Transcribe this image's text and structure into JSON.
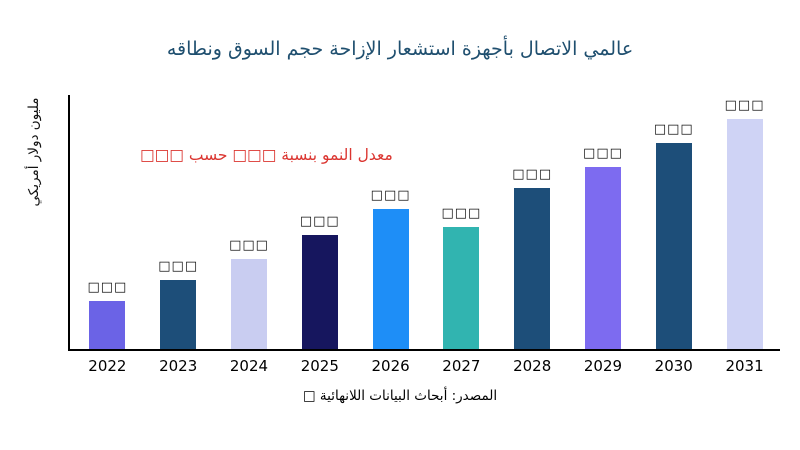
{
  "title": "عالمي الاتصال بأجهزة استشعار الإزاحة حجم السوق ونطاقه",
  "annotation": "معدل النمو بنسبة □□□ حسب □□□",
  "source": "المصدر: أبحاث البيانات اللانهائية □",
  "accent_colors": {
    "title": "#1f4f6f",
    "annotation": "#db3530",
    "axis": "#000000"
  },
  "chart_data": {
    "type": "bar",
    "title": "عالمي الاتصال بأجهزة استشعار الإزاحة حجم السوق ونطاقه",
    "xlabel": "",
    "ylabel": "مليون دولار أمريكي",
    "categories": [
      "2022",
      "2023",
      "2024",
      "2025",
      "2026",
      "2027",
      "2028",
      "2029",
      "2030",
      "2031"
    ],
    "values": [
      48,
      69,
      90,
      114,
      140,
      122,
      161,
      182,
      206,
      230
    ],
    "value_labels": [
      "□□□",
      "□□□",
      "□□□",
      "□□□",
      "□□□",
      "□□□",
      "□□□",
      "□□□",
      "□□□",
      "□□□"
    ],
    "bar_colors": [
      "#6b63e6",
      "#1d4e79",
      "#c9cdf1",
      "#16165e",
      "#1e8ef7",
      "#31b4b0",
      "#1d4e79",
      "#7d6bf0",
      "#1d4e79",
      "#cfd3f5"
    ],
    "ylim": [
      0,
      255
    ],
    "units": "relative (y-axis unlabeled, value labels unreadable glyph boxes)",
    "grid": false,
    "legend": "none",
    "annotation_text": "معدل النمو بنسبة □□□ حسب □□□"
  }
}
